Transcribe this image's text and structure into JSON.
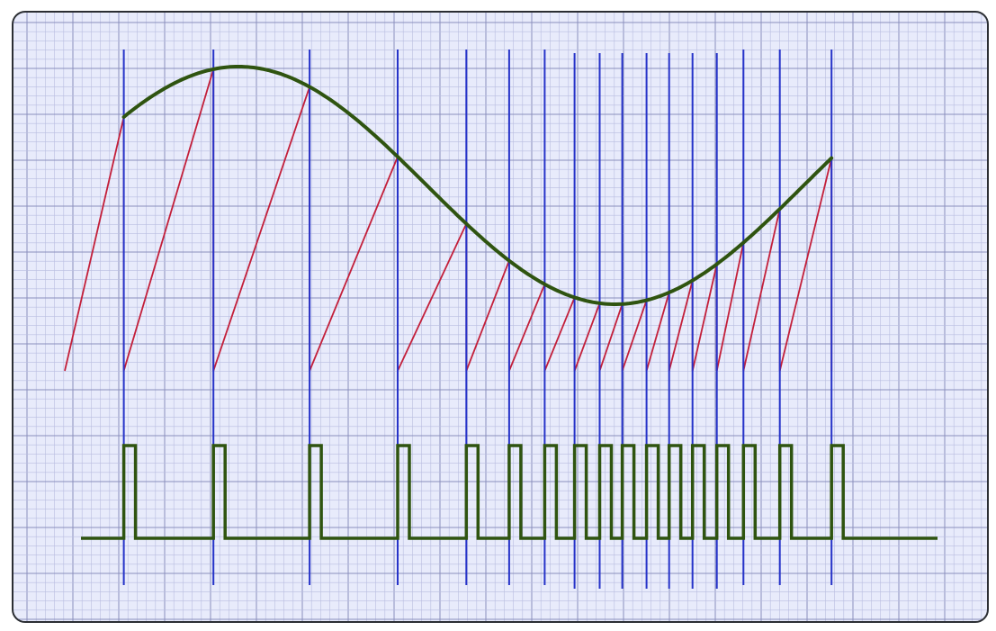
{
  "diagram": {
    "kind": "pulse-frequency-modulation",
    "colors": {
      "background": "#e8ebfb",
      "border": "#2b2e33",
      "grid_minor": "#b9bde0",
      "grid_major": "#8a8fbd",
      "sine": "#2f5410",
      "ramp": "#c31f3a",
      "trigger": "#2633c9",
      "pulse": "#2f5410"
    },
    "pulse_times": [
      0.073,
      0.184,
      0.303,
      0.412,
      0.497,
      0.55,
      0.594,
      0.631,
      0.662,
      0.69,
      0.72,
      0.748,
      0.777,
      0.807,
      0.84,
      0.885,
      0.949
    ],
    "sine": {
      "baseline": 0.52,
      "amplitude": 0.345,
      "phase_start_deg": 7,
      "phase_end_deg": 393
    }
  }
}
